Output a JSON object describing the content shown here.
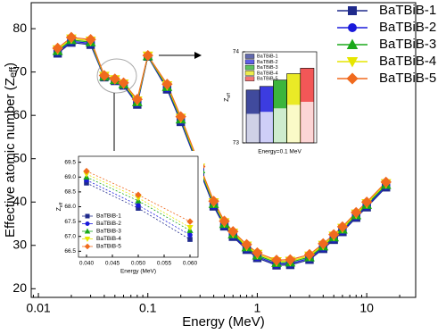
{
  "chart_data": [
    {
      "type": "line",
      "log_x": true,
      "x_label": "Energy (MeV)",
      "y_label": "Effective atomic number (Z",
      "y_label_sub": "eff",
      "y_label_end": ")",
      "x": [
        0.015,
        0.02,
        0.03,
        0.04,
        0.05,
        0.06,
        0.08,
        0.1,
        0.15,
        0.2,
        0.3,
        0.4,
        0.5,
        0.6,
        0.8,
        1,
        1.5,
        2,
        3,
        4,
        5,
        6,
        8,
        10,
        15
      ],
      "series": [
        {
          "name": "BaTBiB-1",
          "color": "#1f2a8c",
          "marker": "square",
          "values": [
            74.3,
            76.8,
            76.3,
            68.8,
            67.95,
            66.9,
            62.5,
            73.58,
            66.0,
            58.5,
            47.0,
            39.0,
            34.4,
            32.0,
            29.0,
            27.1,
            25.4,
            25.5,
            26.7,
            29.2,
            31.3,
            33.1,
            36.4,
            38.8,
            43.4
          ]
        },
        {
          "name": "BaTBiB-2",
          "color": "#1a1adb",
          "marker": "circle",
          "values": [
            74.6,
            77.1,
            76.6,
            68.9,
            68.05,
            67.05,
            62.8,
            73.62,
            66.3,
            58.8,
            47.3,
            39.3,
            34.7,
            32.3,
            29.3,
            27.4,
            25.7,
            25.8,
            27.0,
            29.5,
            31.6,
            33.4,
            36.7,
            39.1,
            43.7
          ]
        },
        {
          "name": "BaTBiB-3",
          "color": "#1aa81a",
          "marker": "triangle",
          "values": [
            74.9,
            77.4,
            76.9,
            69.0,
            68.2,
            67.2,
            63.1,
            73.69,
            66.6,
            59.1,
            47.6,
            39.6,
            35.0,
            32.6,
            29.6,
            27.7,
            26.0,
            26.1,
            27.3,
            29.8,
            31.9,
            33.7,
            37.0,
            39.4,
            44.0
          ]
        },
        {
          "name": "BaTBiB-4",
          "color": "#e6e600",
          "marker": "down-triangle",
          "values": [
            75.2,
            77.7,
            77.2,
            69.1,
            68.3,
            67.3,
            63.4,
            73.76,
            66.9,
            59.4,
            47.9,
            39.9,
            35.3,
            32.9,
            29.9,
            28.0,
            26.3,
            26.4,
            27.6,
            30.1,
            32.2,
            34.0,
            37.3,
            39.7,
            44.3
          ]
        },
        {
          "name": "BaTBiB-5",
          "color": "#f06a1e",
          "marker": "diamond",
          "values": [
            75.5,
            78.0,
            77.5,
            69.2,
            68.4,
            67.5,
            63.7,
            73.82,
            67.2,
            59.7,
            48.2,
            40.2,
            35.6,
            33.2,
            30.2,
            28.3,
            26.6,
            26.7,
            27.9,
            30.4,
            32.5,
            34.3,
            37.6,
            40.0,
            44.6
          ]
        }
      ],
      "xlim": [
        0.0086,
        28
      ],
      "xticks": [
        0.01,
        0.1,
        1,
        10
      ],
      "ylim": [
        18,
        86
      ],
      "yticks": [
        20,
        30,
        40,
        50,
        60,
        70,
        80
      ],
      "legend": "top-right"
    },
    {
      "type": "line",
      "dashed": true,
      "x_label": "Energy (MeV)",
      "y_label": "Z",
      "y_label_sub": "eff",
      "x": [
        0.04,
        0.05,
        0.06
      ],
      "series": [
        {
          "name": "BaTBiB-1",
          "color": "#1f2a8c",
          "marker": "square",
          "values": [
            68.8,
            67.95,
            66.9
          ]
        },
        {
          "name": "BaTBiB-2",
          "color": "#1a1adb",
          "marker": "circle",
          "values": [
            68.9,
            68.05,
            67.05
          ]
        },
        {
          "name": "BaTBiB-3",
          "color": "#1aa81a",
          "marker": "triangle",
          "values": [
            69.0,
            68.2,
            67.2
          ]
        },
        {
          "name": "BaTBiB-4",
          "color": "#e6e600",
          "marker": "down-triangle",
          "values": [
            69.1,
            68.3,
            67.3
          ]
        },
        {
          "name": "BaTBiB-5",
          "color": "#f06a1e",
          "marker": "diamond",
          "values": [
            69.2,
            68.4,
            67.5
          ]
        }
      ],
      "xlim": [
        0.03845,
        0.06155
      ],
      "xticks": [
        {
          "value": 0.04,
          "label": "0.040"
        },
        {
          "value": 0.045,
          "label": "0.045"
        },
        {
          "value": 0.05,
          "label": "0.050"
        },
        {
          "value": 0.055,
          "label": "0.055"
        },
        {
          "value": 0.06,
          "label": "0.060"
        }
      ],
      "ylim": [
        66.3,
        69.7
      ],
      "yticks": [
        66.5,
        {
          "value": 67,
          "label": "67.0"
        },
        67.5,
        {
          "value": 68,
          "label": "68.0"
        },
        68.5,
        {
          "value": 69,
          "label": "69.0"
        },
        69.5
      ],
      "legend": "bottom-left"
    },
    {
      "type": "bar",
      "x_label": "Energy=0.1 MeV",
      "y_label": "Z",
      "y_label_sub": "eff",
      "series": [
        {
          "name": "BaTBiB-1",
          "color": "#1f2a8c",
          "values": [
            73.58
          ]
        },
        {
          "name": "BaTBiB-2",
          "color": "#1a1adb",
          "values": [
            73.62
          ]
        },
        {
          "name": "BaTBiB-3",
          "color": "#1aa81a",
          "values": [
            73.69
          ]
        },
        {
          "name": "BaTBiB-4",
          "color": "#e6e600",
          "values": [
            73.76
          ]
        },
        {
          "name": "BaTBiB-5",
          "color": "#f03a3a",
          "values": [
            73.82
          ]
        }
      ],
      "ylim": [
        73,
        74
      ],
      "yticks": [
        73,
        74
      ],
      "legend": "top-left"
    }
  ]
}
